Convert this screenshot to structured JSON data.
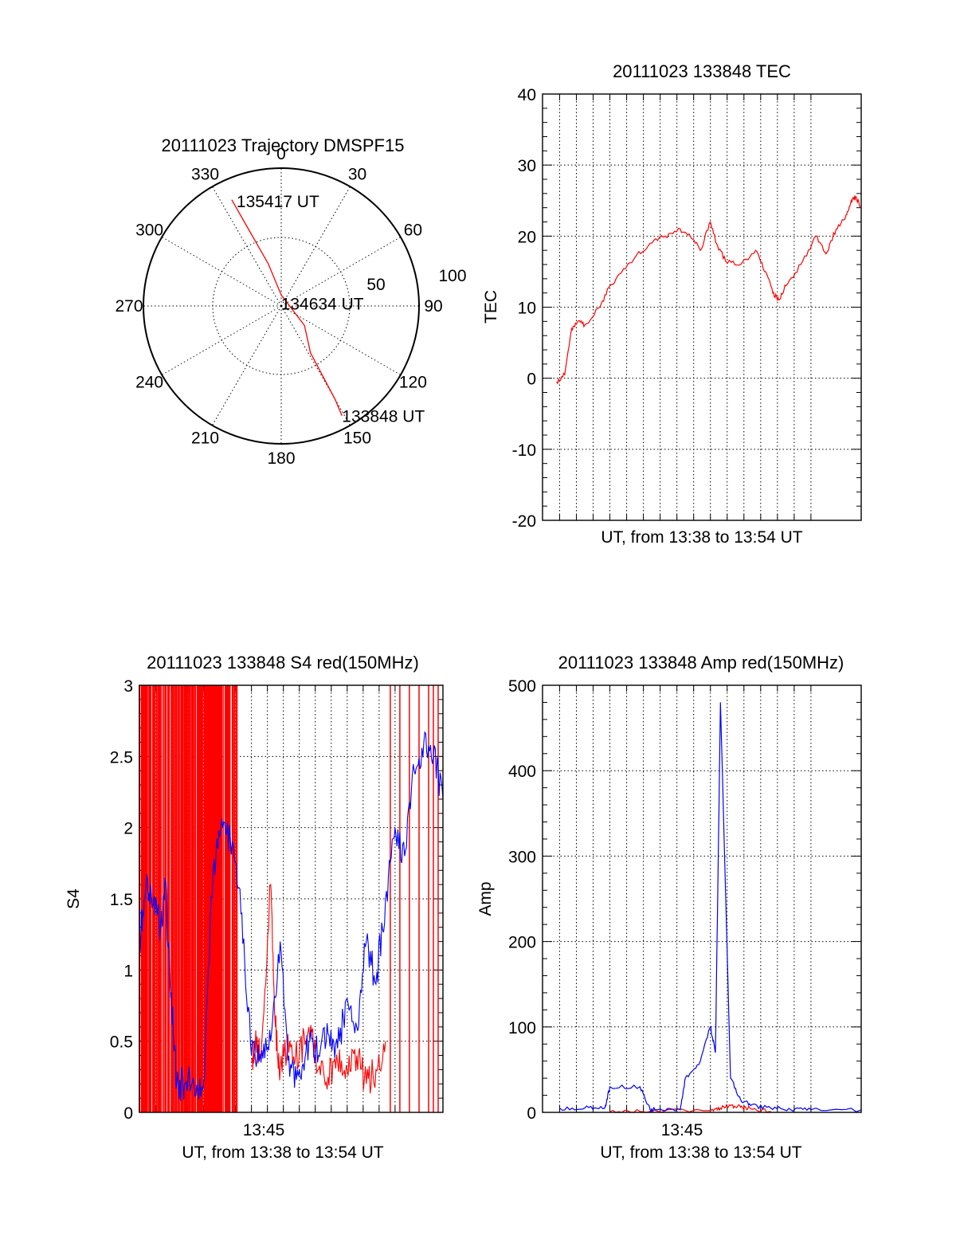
{
  "colors": {
    "red": "#ff0000",
    "blue": "#0000ff",
    "axis": "#000000"
  },
  "chart_data": [
    {
      "id": "trajectory",
      "type": "polar",
      "title": "20111023 Trajectory DMSPF15",
      "angle_labels": [
        "0",
        "30",
        "60",
        "90",
        "120",
        "150",
        "180",
        "210",
        "240",
        "270",
        "300",
        "330"
      ],
      "angles_deg": [
        0,
        30,
        60,
        90,
        120,
        150,
        180,
        210,
        240,
        270,
        300,
        330
      ],
      "radial_labels": [
        "50",
        "100"
      ],
      "radial_values": [
        50,
        100
      ],
      "rmax": 100,
      "series": [
        {
          "color": "#ff0000",
          "points_az_r": [
            [
              335,
              85
            ],
            [
              337,
              60
            ],
            [
              343,
              32
            ],
            [
              0,
              8
            ],
            [
              130,
              22
            ],
            [
              148,
              40
            ],
            [
              150,
              78
            ],
            [
              151,
              91
            ]
          ]
        }
      ],
      "annotations": [
        {
          "text": "135417 UT",
          "az": 337,
          "r": 83
        },
        {
          "text": "134634 UT",
          "az": 355,
          "r": 2
        },
        {
          "text": "133848 UT",
          "az": 151,
          "r": 91
        }
      ]
    },
    {
      "id": "tec",
      "type": "line",
      "title": "20111023 133848 TEC",
      "xlabel": "UT, from 13:38 to 13:54 UT",
      "ylabel": "TEC",
      "ylim": [
        -20,
        40
      ],
      "yticks": [
        "-20",
        "-10",
        "0",
        "10",
        "20",
        "30",
        "40"
      ],
      "xlim": [
        13.633,
        13.95
      ],
      "series": [
        {
          "color": "#ff0000",
          "x": [
            13.647,
            13.655,
            13.662,
            13.668,
            13.675,
            13.69,
            13.7,
            13.712,
            13.725,
            13.74,
            13.755,
            13.77,
            13.78,
            13.79,
            13.8,
            13.806,
            13.815,
            13.83,
            13.845,
            13.855,
            13.862,
            13.868,
            13.875,
            13.89,
            13.905,
            13.915,
            13.925,
            13.935,
            13.94,
            13.945,
            13.95
          ],
          "y": [
            -0.5,
            0.5,
            7,
            8,
            7.5,
            10,
            13,
            15,
            17,
            19,
            20,
            21,
            20,
            18,
            22,
            19,
            16.5,
            16,
            18,
            15,
            12,
            11,
            13,
            16,
            20,
            17.5,
            21,
            23,
            25,
            25.5,
            24
          ]
        }
      ]
    },
    {
      "id": "s4",
      "type": "line",
      "title": "20111023 133848 S4 red(150MHz)",
      "xlabel": "UT, from 13:38 to 13:54 UT",
      "ylabel": "S4",
      "ylim": [
        0,
        3
      ],
      "yticks": [
        "0",
        "0.5",
        "1",
        "1.5",
        "2",
        "2.5",
        "3"
      ],
      "xticks": [
        "13:45"
      ],
      "xtick_values": [
        13.75
      ],
      "xlim": [
        13.633,
        13.95
      ],
      "series": [
        {
          "color": "#0000ff",
          "x": [
            13.633,
            13.64,
            13.648,
            13.655,
            13.66,
            13.665,
            13.672,
            13.68,
            13.69,
            13.7,
            13.71,
            13.72,
            13.73,
            13.74,
            13.75,
            13.76,
            13.77,
            13.78,
            13.79,
            13.8,
            13.81,
            13.82,
            13.83,
            13.84,
            13.85,
            13.86,
            13.87,
            13.88,
            13.89,
            13.9,
            13.91,
            13.92,
            13.93,
            13.94,
            13.95
          ],
          "y": [
            1.2,
            1.6,
            1.5,
            1.3,
            1.6,
            0.9,
            0.2,
            0.2,
            0.2,
            0.2,
            1.7,
            2.0,
            1.9,
            1.4,
            0.4,
            0.35,
            0.5,
            1.2,
            0.25,
            0.3,
            0.5,
            0.4,
            0.55,
            0.45,
            0.8,
            0.6,
            1.2,
            0.9,
            1.5,
            2.0,
            1.8,
            2.4,
            2.6,
            2.5,
            2.2
          ]
        },
        {
          "color": "#ff0000",
          "x": [
            13.75,
            13.755,
            13.76,
            13.77,
            13.775,
            13.78,
            13.79,
            13.8,
            13.81,
            13.82,
            13.83,
            13.84,
            13.85,
            13.86,
            13.87,
            13.88,
            13.89
          ],
          "y": [
            0.35,
            0.5,
            0.4,
            1.6,
            0.6,
            0.3,
            0.5,
            0.4,
            0.6,
            0.3,
            0.25,
            0.35,
            0.3,
            0.4,
            0.2,
            0.3,
            0.5
          ]
        }
      ],
      "red_dense_region_x": [
        13.633,
        13.735
      ]
    },
    {
      "id": "amp",
      "type": "line",
      "title": "20111023 133848 Amp red(150MHz)",
      "xlabel": "UT, from 13:38 to 13:54 UT",
      "ylabel": "Amp",
      "ylim": [
        0,
        500
      ],
      "yticks": [
        "0",
        "100",
        "200",
        "300",
        "400",
        "500"
      ],
      "xticks": [
        "13:45"
      ],
      "xtick_values": [
        13.75
      ],
      "xlim": [
        13.633,
        13.95
      ],
      "series": [
        {
          "color": "#0000ff",
          "x": [
            13.65,
            13.675,
            13.695,
            13.7,
            13.73,
            13.74,
            13.745,
            13.77,
            13.775,
            13.79,
            13.8,
            13.805,
            13.81,
            13.82,
            13.83,
            13.84,
            13.86,
            13.88,
            13.9,
            13.95
          ],
          "y": [
            5,
            5,
            5,
            30,
            30,
            3,
            3,
            3,
            40,
            60,
            100,
            70,
            480,
            40,
            15,
            8,
            5,
            3,
            3,
            3
          ]
        },
        {
          "color": "#ff0000",
          "x": [
            13.7,
            13.73,
            13.8,
            13.81,
            13.82,
            13.83,
            13.84,
            13.86
          ],
          "y": [
            1,
            1,
            2,
            5,
            8,
            6,
            4,
            1
          ]
        }
      ]
    }
  ]
}
